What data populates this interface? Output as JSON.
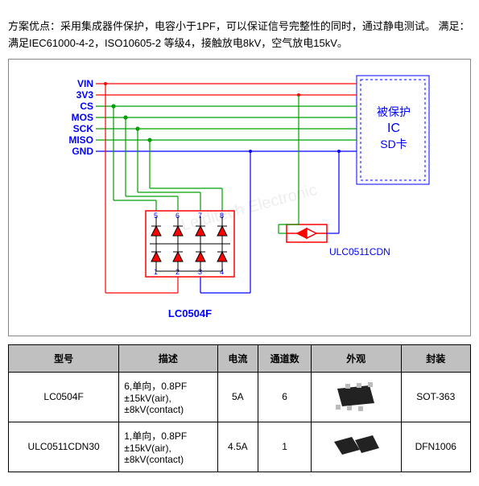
{
  "description": "方案优点：采用集成器件保护，电容小于1PF，可以保证信号完整性的同时，通过静电测试。 满足：满足IEC61000-4-2，ISO10605-2 等级4，接触放电8kV，空气放电15kV。",
  "diagram": {
    "signals": [
      {
        "label": "VIN",
        "color": "#ff0000"
      },
      {
        "label": "3V3",
        "color": "#ff0000"
      },
      {
        "label": "CS",
        "color": "#00a000"
      },
      {
        "label": "MOS",
        "color": "#00a000"
      },
      {
        "label": "SCK",
        "color": "#00a000"
      },
      {
        "label": "MISO",
        "color": "#00a000"
      },
      {
        "label": "GND",
        "color": "#0000ff"
      }
    ],
    "signal_label_color": "#0000ff",
    "protected_box": {
      "line1": "被保护",
      "line2": "IC",
      "line3": "SD卡",
      "text_color": "#0000ff",
      "border_color": "#0000ff"
    },
    "lc0504f": {
      "label": "LC0504F",
      "label_color": "#0000ff",
      "diode_fill": "#ff0000",
      "border_color": "#ff0000",
      "pin_color": "#0000ff"
    },
    "ulc": {
      "label": "ULC0511CDN",
      "label_color": "#0000ff",
      "diode_color": "#ff0000"
    },
    "watermark": "Leiditech Electronic"
  },
  "table": {
    "headers": [
      "型号",
      "描述",
      "电流",
      "通道数",
      "外观",
      "封装"
    ],
    "rows": [
      {
        "model": "LC0504F",
        "desc": "6,单向，0.8PF\n±15kV(air),\n±8kV(contact)",
        "current": "5A",
        "channels": "6",
        "package": "SOT-363",
        "chip_type": "sot363"
      },
      {
        "model": "ULC0511CDN30",
        "desc": "1,单向，0.8PF\n±15kV(air),\n±8kV(contact)",
        "current": "4.5A",
        "channels": "1",
        "package": "DFN1006",
        "chip_type": "dfn1006"
      }
    ]
  }
}
